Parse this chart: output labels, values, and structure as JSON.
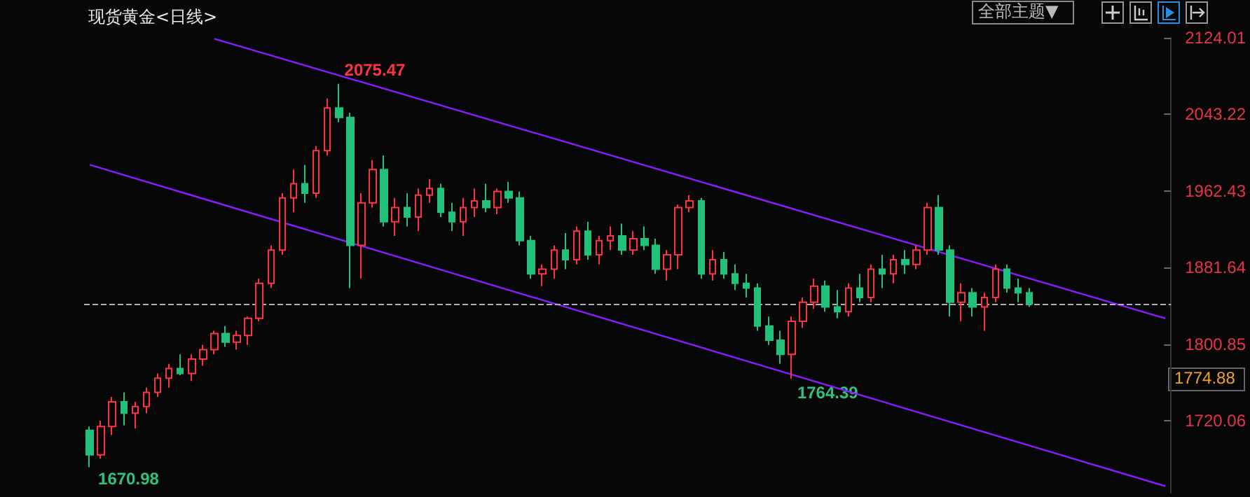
{
  "chart_data": {
    "type": "candlestick",
    "title": "现货黄金<日线>",
    "categories": [
      null,
      null,
      null,
      null,
      null,
      null,
      null,
      null,
      null,
      null,
      null,
      null,
      null,
      null,
      null,
      null,
      null,
      null,
      null,
      null,
      null,
      null,
      null,
      null,
      null,
      null,
      null,
      null,
      null,
      null,
      null,
      null,
      null,
      null,
      null,
      null,
      null,
      null,
      null,
      null,
      null,
      null,
      null,
      null,
      null,
      null,
      null,
      null,
      null,
      null,
      null,
      null,
      null,
      null,
      null,
      null,
      null,
      null,
      null,
      null,
      null,
      null,
      null,
      null,
      null,
      null,
      null,
      null,
      null,
      null,
      null,
      null,
      null,
      null,
      null,
      null,
      null,
      null,
      null,
      null,
      null,
      null,
      null,
      null,
      null,
      null,
      null,
      null,
      null,
      null,
      null,
      null,
      null,
      null,
      null,
      null
    ],
    "ohlc": [
      [
        1710,
        1714,
        1670.98,
        1684
      ],
      [
        1684,
        1720,
        1680,
        1714
      ],
      [
        1714,
        1745,
        1705,
        1740
      ],
      [
        1740,
        1750,
        1715,
        1728
      ],
      [
        1728,
        1740,
        1712,
        1735
      ],
      [
        1735,
        1755,
        1728,
        1750
      ],
      [
        1750,
        1770,
        1745,
        1765
      ],
      [
        1765,
        1780,
        1755,
        1775
      ],
      [
        1775,
        1790,
        1768,
        1770
      ],
      [
        1770,
        1790,
        1762,
        1785
      ],
      [
        1785,
        1800,
        1778,
        1795
      ],
      [
        1795,
        1815,
        1790,
        1812
      ],
      [
        1812,
        1820,
        1798,
        1803
      ],
      [
        1803,
        1815,
        1795,
        1810
      ],
      [
        1810,
        1830,
        1800,
        1828
      ],
      [
        1828,
        1870,
        1825,
        1865
      ],
      [
        1865,
        1905,
        1860,
        1900
      ],
      [
        1900,
        1960,
        1895,
        1955
      ],
      [
        1955,
        1985,
        1940,
        1970
      ],
      [
        1970,
        1990,
        1950,
        1960
      ],
      [
        1960,
        2010,
        1955,
        2005
      ],
      [
        2005,
        2060,
        2000,
        2050
      ],
      [
        2050,
        2075.47,
        2035,
        2040
      ],
      [
        2040,
        2045,
        1860,
        1905
      ],
      [
        1905,
        1960,
        1870,
        1950
      ],
      [
        1950,
        1995,
        1945,
        1985
      ],
      [
        1985,
        2000,
        1925,
        1930
      ],
      [
        1930,
        1955,
        1915,
        1945
      ],
      [
        1945,
        1960,
        1925,
        1935
      ],
      [
        1935,
        1965,
        1920,
        1958
      ],
      [
        1958,
        1975,
        1950,
        1965
      ],
      [
        1965,
        1970,
        1935,
        1940
      ],
      [
        1940,
        1950,
        1920,
        1930
      ],
      [
        1930,
        1955,
        1915,
        1945
      ],
      [
        1945,
        1965,
        1935,
        1952
      ],
      [
        1952,
        1970,
        1940,
        1945
      ],
      [
        1945,
        1965,
        1938,
        1962
      ],
      [
        1962,
        1972,
        1950,
        1955
      ],
      [
        1955,
        1962,
        1905,
        1910
      ],
      [
        1910,
        1915,
        1870,
        1875
      ],
      [
        1875,
        1885,
        1862,
        1880
      ],
      [
        1880,
        1905,
        1870,
        1900
      ],
      [
        1900,
        1918,
        1880,
        1890
      ],
      [
        1890,
        1925,
        1885,
        1920
      ],
      [
        1920,
        1930,
        1890,
        1895
      ],
      [
        1895,
        1915,
        1885,
        1910
      ],
      [
        1910,
        1925,
        1900,
        1915
      ],
      [
        1915,
        1928,
        1895,
        1900
      ],
      [
        1900,
        1920,
        1895,
        1912
      ],
      [
        1912,
        1925,
        1900,
        1905
      ],
      [
        1905,
        1912,
        1875,
        1880
      ],
      [
        1880,
        1900,
        1868,
        1895
      ],
      [
        1895,
        1948,
        1880,
        1945
      ],
      [
        1945,
        1958,
        1940,
        1952
      ],
      [
        1952,
        1955,
        1870,
        1875
      ],
      [
        1875,
        1900,
        1868,
        1890
      ],
      [
        1890,
        1898,
        1870,
        1875
      ],
      [
        1875,
        1885,
        1858,
        1865
      ],
      [
        1865,
        1875,
        1850,
        1860
      ],
      [
        1860,
        1865,
        1815,
        1820
      ],
      [
        1820,
        1830,
        1800,
        1805
      ],
      [
        1805,
        1815,
        1780,
        1790
      ],
      [
        1790,
        1830,
        1764.39,
        1825
      ],
      [
        1825,
        1850,
        1818,
        1845
      ],
      [
        1845,
        1870,
        1838,
        1862
      ],
      [
        1862,
        1868,
        1835,
        1840
      ],
      [
        1840,
        1858,
        1828,
        1835
      ],
      [
        1835,
        1865,
        1830,
        1860
      ],
      [
        1860,
        1875,
        1845,
        1850
      ],
      [
        1850,
        1885,
        1845,
        1880
      ],
      [
        1880,
        1895,
        1860,
        1875
      ],
      [
        1875,
        1895,
        1865,
        1890
      ],
      [
        1890,
        1900,
        1875,
        1885
      ],
      [
        1885,
        1905,
        1880,
        1900
      ],
      [
        1900,
        1950,
        1895,
        1945
      ],
      [
        1945,
        1958,
        1895,
        1900
      ],
      [
        1900,
        1905,
        1830,
        1845
      ],
      [
        1845,
        1865,
        1825,
        1855
      ],
      [
        1855,
        1860,
        1830,
        1840
      ],
      [
        1840,
        1855,
        1815,
        1850
      ],
      [
        1850,
        1885,
        1845,
        1880
      ],
      [
        1880,
        1885,
        1855,
        1860
      ],
      [
        1860,
        1870,
        1845,
        1855
      ],
      [
        1855,
        1860,
        1840,
        1843
      ],
      null,
      null,
      null,
      null,
      null,
      null,
      null,
      null,
      null,
      null,
      null,
      null
    ],
    "colors": [
      "#22c07a",
      "#ff3346",
      "#ff3346",
      "#22c07a",
      "#ff3346",
      "#ff3346",
      "#ff3346",
      "#ff3346",
      "#22c07a",
      "#ff3346",
      "#ff3346",
      "#ff3346",
      "#22c07a",
      "#ff3346",
      "#ff3346",
      "#ff3346",
      "#ff3346",
      "#ff3346",
      "#ff3346",
      "#22c07a",
      "#ff3346",
      "#ff3346",
      "#22c07a",
      "#22c07a",
      "#ff3346",
      "#ff3346",
      "#22c07a",
      "#ff3346",
      "#22c07a",
      "#ff3346",
      "#ff3346",
      "#22c07a",
      "#22c07a",
      "#ff3346",
      "#ff3346",
      "#22c07a",
      "#ff3346",
      "#22c07a",
      "#22c07a",
      "#22c07a",
      "#ff3346",
      "#ff3346",
      "#22c07a",
      "#ff3346",
      "#22c07a",
      "#ff3346",
      "#ff3346",
      "#22c07a",
      "#ff3346",
      "#22c07a",
      "#22c07a",
      "#ff3346",
      "#ff3346",
      "#ff3346",
      "#22c07a",
      "#ff3346",
      "#22c07a",
      "#22c07a",
      "#22c07a",
      "#22c07a",
      "#22c07a",
      "#22c07a",
      "#ff3346",
      "#ff3346",
      "#ff3346",
      "#22c07a",
      "#22c07a",
      "#ff3346",
      "#22c07a",
      "#ff3346",
      "#22c07a",
      "#ff3346",
      "#22c07a",
      "#ff3346",
      "#ff3346",
      "#22c07a",
      "#22c07a",
      "#ff3346",
      "#22c07a",
      "#ff3346",
      "#ff3346",
      "#22c07a",
      "#22c07a",
      "#22c07a",
      null,
      null,
      null,
      null,
      null,
      null,
      null,
      null,
      null,
      null,
      null,
      null
    ],
    "series": [
      {
        "type": "line",
        "color": "#8a1cff",
        "values": [
          null,
          null,
          null,
          null,
          null,
          null,
          null,
          null,
          null,
          null,
          null,
          2123,
          null,
          null,
          null,
          null,
          null,
          null,
          null,
          null,
          null,
          null,
          null,
          null,
          null,
          null,
          null,
          null,
          null,
          null,
          null,
          null,
          null,
          null,
          null,
          null,
          null,
          null,
          null,
          null,
          null,
          null,
          null,
          null,
          null,
          null,
          null,
          null,
          null,
          null,
          null,
          null,
          null,
          null,
          null,
          null,
          null,
          null,
          null,
          null,
          null,
          null,
          null,
          null,
          null,
          null,
          null,
          null,
          null,
          null,
          null,
          null,
          null,
          null,
          null,
          null,
          null,
          null,
          null,
          null,
          null,
          null,
          null,
          null,
          null,
          null,
          null,
          null,
          null,
          null,
          null,
          null,
          null,
          null,
          null,
          1828
        ]
      },
      {
        "type": "line",
        "color": "#8a1cff",
        "values": [
          1990,
          null,
          null,
          null,
          null,
          null,
          null,
          null,
          null,
          null,
          null,
          null,
          null,
          null,
          null,
          null,
          null,
          null,
          null,
          null,
          null,
          null,
          null,
          null,
          null,
          null,
          null,
          null,
          null,
          null,
          null,
          null,
          null,
          null,
          null,
          null,
          null,
          null,
          null,
          null,
          null,
          null,
          null,
          null,
          null,
          null,
          null,
          null,
          null,
          null,
          null,
          null,
          null,
          null,
          null,
          null,
          null,
          null,
          null,
          null,
          null,
          null,
          null,
          null,
          null,
          null,
          null,
          null,
          null,
          null,
          null,
          null,
          null,
          null,
          null,
          null,
          null,
          null,
          null,
          null,
          null,
          null,
          null,
          null,
          null,
          null,
          null,
          null,
          null,
          null,
          null,
          null,
          null,
          null,
          null,
          1651
        ]
      }
    ],
    "ylim": [
      1644,
      2124.01
    ],
    "yticks": [
      1720.06,
      1800.85,
      1881.64,
      1962.43,
      2043.22,
      2124.01
    ],
    "ref_lines": [
      {
        "axis": "y",
        "value": 1843,
        "color": "#b0b0b0",
        "line_style": "dashed"
      }
    ],
    "annotations": [
      "全部主题▼",
      "1774.88",
      {
        "text": "2075.47",
        "y": 2075.47
      },
      {
        "text": "1764.39",
        "y": 1764.39
      },
      "1670.98"
    ],
    "grid": false
  }
}
